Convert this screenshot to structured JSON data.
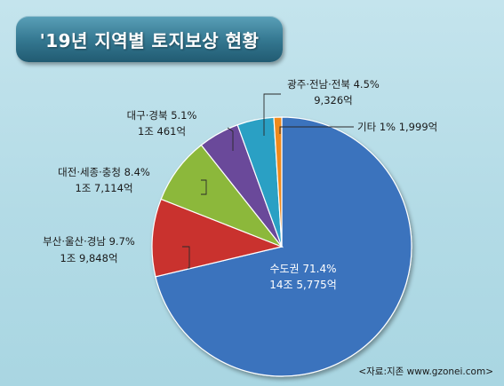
{
  "title": "'19년 지역별 토지보상 현황",
  "source": "<자료:지존 www.gzonei.com>",
  "chart_data": {
    "type": "pie",
    "title": "'19년 지역별 토지보상 현황",
    "unit": "억",
    "slices": [
      {
        "name": "수도권",
        "percent": 71.4,
        "amount_text": "14조 5,775억",
        "value": 145775,
        "color": "#3b73bd"
      },
      {
        "name": "부산·울산·경남",
        "percent": 9.7,
        "amount_text": "1조 9,848억",
        "value": 19848,
        "color": "#c9312d"
      },
      {
        "name": "대전·세종·충청",
        "percent": 8.4,
        "amount_text": "1조 7,114억",
        "value": 17114,
        "color": "#8cb83a"
      },
      {
        "name": "대구·경북",
        "percent": 5.1,
        "amount_text": "1조 461억",
        "value": 10461,
        "color": "#6a4a9a"
      },
      {
        "name": "광주·전남·전북",
        "percent": 4.5,
        "amount_text": "9,326억",
        "value": 9326,
        "color": "#29a0c4"
      },
      {
        "name": "기타",
        "percent": 1,
        "amount_text": "1,999억",
        "value": 1999,
        "color": "#f08a1e"
      }
    ]
  },
  "labels": {
    "sudo": {
      "line1": "수도권 71.4%",
      "line2": "14조 5,775억"
    },
    "busan": {
      "line1": "부산·울산·경남 9.7%",
      "line2": "1조 9,848억"
    },
    "daejeon": {
      "line1": "대전·세종·충청 8.4%",
      "line2": "1조 7,114억"
    },
    "daegu": {
      "line1": "대구·경북 5.1%",
      "line2": "1조 461억"
    },
    "gwangju": {
      "line1": "광주·전남·전북 4.5%",
      "line2": "9,326억"
    },
    "etc": {
      "line1": "기타 1% 1,999억"
    }
  }
}
